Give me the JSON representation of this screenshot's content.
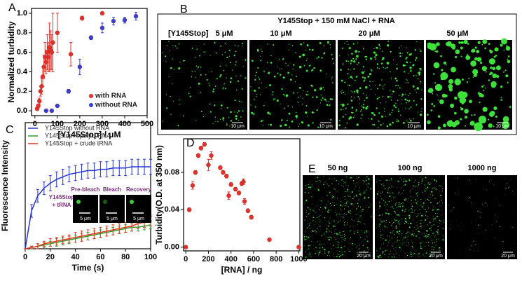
{
  "panel_labels": [
    "A",
    "B",
    "C",
    "D",
    "E"
  ],
  "chart_data": [
    {
      "type": "scatter",
      "y_label": "Normalized turbidity",
      "x_label": "[Y145Stop] / μM",
      "xlim": [
        -15,
        500
      ],
      "xticks": [
        0,
        100,
        200,
        300,
        400,
        500
      ],
      "ylim": [
        -0.05,
        1.05
      ],
      "yticks": [
        {
          "value": 0,
          "label": "0.0"
        },
        0.2,
        0.4,
        0.6,
        0.8,
        {
          "value": 1,
          "label": "1.0"
        }
      ],
      "legend": "lower right",
      "series": [
        {
          "name": "with RNA",
          "color": "#e8302a",
          "x": [
            10,
            15,
            20,
            25,
            30,
            35,
            40,
            45,
            50,
            55,
            60,
            65,
            70,
            75,
            80,
            100,
            160,
            210,
            300
          ],
          "values": [
            0.02,
            0.05,
            0.1,
            0.2,
            0.25,
            0.35,
            0.45,
            0.55,
            0.5,
            0.6,
            0.55,
            0.65,
            0.62,
            0.6,
            0.7,
            0.8,
            0.58,
            0.95,
            1.0
          ],
          "errors": [
            0.01,
            0.02,
            0.03,
            0.05,
            0.08,
            0.1,
            0.12,
            0.15,
            0.12,
            0.18,
            0.15,
            0.25,
            0.2,
            0.18,
            0.3,
            0.2,
            0.12,
            0.02,
            0.01
          ]
        },
        {
          "name": "without RNA",
          "color": "#2f3fe0",
          "x": [
            50,
            75,
            100,
            150,
            200,
            250,
            300,
            350,
            400,
            450
          ],
          "values": [
            0.0,
            0.0,
            0.05,
            0.2,
            0.45,
            0.75,
            0.85,
            0.92,
            0.93,
            0.97
          ],
          "errors": [
            0.01,
            0.01,
            0.01,
            0.02,
            0.08,
            0.02,
            0.05,
            0.04,
            0.03,
            0.04
          ]
        }
      ]
    },
    {
      "type": "line",
      "y_label": "Fluorescence Intensity",
      "x_label": "Time (s)",
      "xlim": [
        0,
        100
      ],
      "xticks": [
        0,
        20,
        40,
        60,
        80,
        100
      ],
      "ylim": [
        0,
        1
      ],
      "legend": "upper left",
      "x": [
        0,
        5,
        10,
        15,
        20,
        25,
        30,
        35,
        40,
        45,
        50,
        55,
        60,
        65,
        70,
        75,
        80,
        85,
        90,
        95,
        100
      ],
      "series": [
        {
          "name": "Y145Stop without RNA",
          "color": "#2433d6",
          "values": [
            0.0,
            0.3,
            0.42,
            0.48,
            0.52,
            0.55,
            0.57,
            0.59,
            0.6,
            0.61,
            0.62,
            0.62,
            0.63,
            0.63,
            0.64,
            0.64,
            0.64,
            0.65,
            0.65,
            0.65,
            0.65
          ],
          "errors": [
            0.0,
            0.05,
            0.05,
            0.05,
            0.06,
            0.06,
            0.06,
            0.06,
            0.06,
            0.06,
            0.06,
            0.06,
            0.06,
            0.06,
            0.06,
            0.06,
            0.06,
            0.06,
            0.06,
            0.06,
            0.06
          ]
        },
        {
          "name": "Y145Stop + polyU RNA",
          "color": "#2ea02e",
          "values": [
            0.0,
            0.01,
            0.02,
            0.03,
            0.04,
            0.05,
            0.06,
            0.07,
            0.08,
            0.09,
            0.1,
            0.11,
            0.12,
            0.13,
            0.14,
            0.15,
            0.16,
            0.17,
            0.17,
            0.18,
            0.19
          ],
          "errors": [
            0.0,
            0.01,
            0.02,
            0.02,
            0.02,
            0.03,
            0.03,
            0.03,
            0.03,
            0.03,
            0.03,
            0.03,
            0.03,
            0.03,
            0.03,
            0.03,
            0.03,
            0.03,
            0.03,
            0.03,
            0.03
          ]
        },
        {
          "name": "Y145Stop + crude tRNA",
          "color": "#e03a1e",
          "values": [
            0.0,
            0.01,
            0.02,
            0.04,
            0.05,
            0.06,
            0.07,
            0.08,
            0.09,
            0.1,
            0.11,
            0.12,
            0.13,
            0.14,
            0.15,
            0.16,
            0.17,
            0.18,
            0.2,
            0.21,
            0.22
          ],
          "errors": [
            0.0,
            0.01,
            0.02,
            0.02,
            0.03,
            0.03,
            0.03,
            0.03,
            0.04,
            0.04,
            0.04,
            0.04,
            0.04,
            0.04,
            0.04,
            0.04,
            0.04,
            0.04,
            0.04,
            0.04,
            0.04
          ]
        }
      ],
      "inset": {
        "labels": [
          "Pre-bleach",
          "Bleach",
          "Recovery"
        ],
        "sample": [
          "Y145Stop",
          "+ tRNA"
        ],
        "scale": "5 μm"
      }
    },
    {
      "type": "scatter",
      "y_label": "Turbidity(O.D. at 350 nm)",
      "x_label": "[RNA] / ng",
      "xlim": [
        -20,
        1010
      ],
      "xticks": [
        0,
        200,
        400,
        600,
        800,
        1000
      ],
      "ylim": [
        -0.004,
        0.116
      ],
      "yticks": [
        {
          "value": 0,
          "label": "0.00"
        },
        0.04,
        0.08
      ],
      "series": [
        {
          "name": null,
          "color": "#e8302a",
          "x": [
            0,
            30,
            60,
            85,
            110,
            134,
            165,
            200,
            225,
            305,
            330,
            360,
            380,
            400,
            440,
            470,
            495,
            510,
            520,
            550,
            580,
            740,
            1000
          ],
          "values": [
            0.0,
            0.04,
            0.066,
            0.08,
            0.098,
            0.106,
            0.11,
            0.088,
            0.098,
            0.085,
            0.08,
            0.076,
            0.055,
            0.067,
            0.062,
            0.058,
            0.068,
            0.07,
            0.049,
            0.039,
            0.032,
            0.008,
            0.0
          ],
          "errors": [
            0.001,
            0.002,
            0.004,
            0.002,
            0.002,
            0.002,
            0.002,
            0.006,
            0.004,
            0.002,
            0.002,
            0.002,
            0.004,
            0.002,
            0.002,
            0.002,
            0.002,
            0.003,
            0.003,
            0.002,
            0.002,
            0.001,
            0.001
          ]
        }
      ]
    }
  ],
  "image_panels": {
    "B": {
      "title": "Y145Stop + 150 mM NaCl + RNA",
      "row_label": "[Y145Stop]",
      "images": [
        {
          "label": "5 μM",
          "scale": "10 μm"
        },
        {
          "label": "10 μM",
          "scale": "10 μm"
        },
        {
          "label": "20 μM",
          "scale": "10 μm"
        },
        {
          "label": "50 μM",
          "scale": "10 μm"
        }
      ]
    },
    "E": {
      "images": [
        {
          "label": "50 ng",
          "scale": "20 μm"
        },
        {
          "label": "100 ng",
          "scale": "20 μm"
        },
        {
          "label": "1000 ng",
          "scale": "20 μm"
        }
      ]
    }
  }
}
